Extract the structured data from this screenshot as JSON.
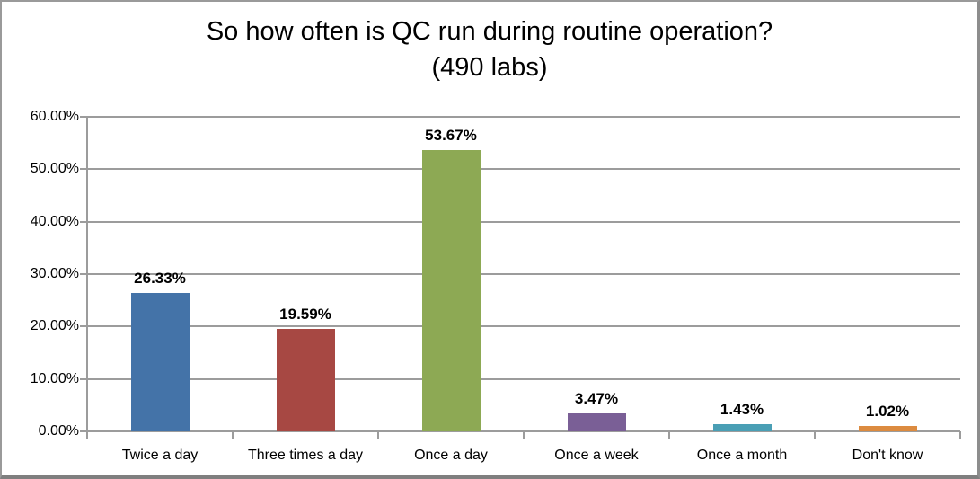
{
  "frame": {
    "background_color": "#FFFFFF",
    "border_color": "#8D8D8D"
  },
  "chart_data": {
    "type": "bar",
    "title": "So how often is QC run during routine operation?",
    "subtitle": "(490 labs)",
    "categories": [
      "Twice a day",
      "Three times a day",
      "Once a day",
      "Once a week",
      "Once a month",
      "Don't know"
    ],
    "values": [
      26.33,
      19.59,
      53.67,
      3.47,
      1.43,
      1.02
    ],
    "value_labels": [
      "26.33%",
      "19.59%",
      "53.67%",
      "3.47%",
      "1.43%",
      "1.02%"
    ],
    "bar_colors": [
      "#4473A8",
      "#A74843",
      "#8DA954",
      "#7A5F96",
      "#4A9FB5",
      "#DC8B40"
    ],
    "xlabel": "",
    "ylabel": "",
    "ylim": [
      0,
      60
    ],
    "yticks": [
      0,
      10,
      20,
      30,
      40,
      50,
      60
    ],
    "ytick_labels": [
      "0.00%",
      "10.00%",
      "20.00%",
      "30.00%",
      "40.00%",
      "50.00%",
      "60.00%"
    ],
    "grid": true,
    "gridline_color": "#9C9C9C",
    "axis_color": "#9C9C9C",
    "legend": "none",
    "data_label_position": "outside-end"
  }
}
